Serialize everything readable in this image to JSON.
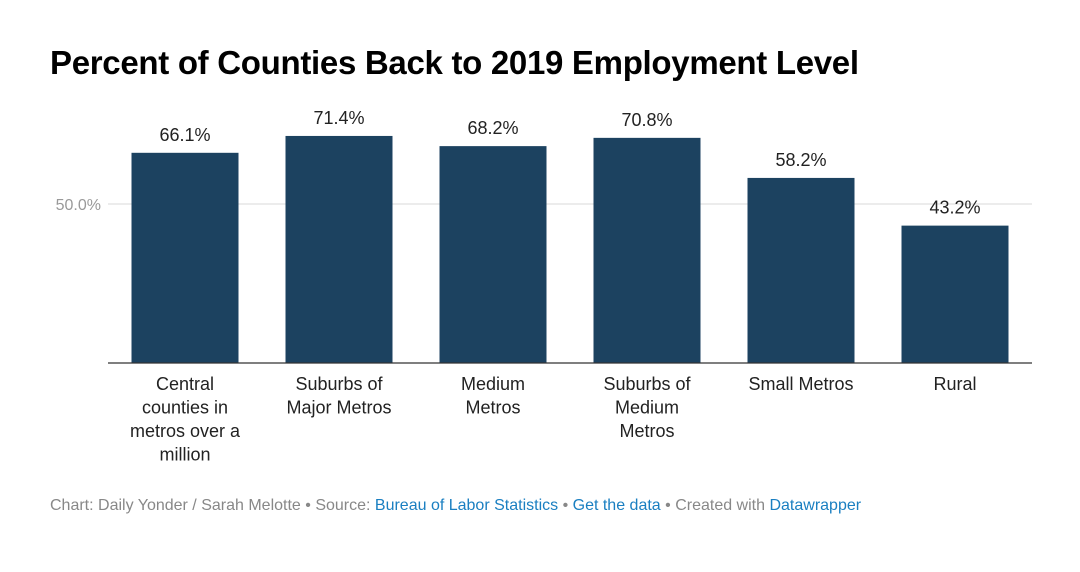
{
  "chart_data": {
    "type": "bar",
    "title": "Percent of Counties Back to 2019 Employment Level",
    "categories": [
      "Central counties in metros over a million",
      "Suburbs of Major Metros",
      "Medium Metros",
      "Suburbs of Medium Metros",
      "Small Metros",
      "Rural"
    ],
    "category_lines": [
      [
        "Central",
        "counties in",
        "metros over a",
        "million"
      ],
      [
        "Suburbs of",
        "Major Metros"
      ],
      [
        "Medium",
        "Metros"
      ],
      [
        "Suburbs of",
        "Medium",
        "Metros"
      ],
      [
        "Small Metros"
      ],
      [
        "Rural"
      ]
    ],
    "values": [
      66.1,
      71.4,
      68.2,
      70.8,
      58.2,
      43.2
    ],
    "value_labels": [
      "66.1%",
      "71.4%",
      "68.2%",
      "70.8%",
      "58.2%",
      "43.2%"
    ],
    "ylim": [
      0,
      80
    ],
    "yticks": [
      50
    ],
    "ytick_labels": [
      "50.0%"
    ],
    "xlabel": "",
    "ylabel": "",
    "bar_color": "#1c4260",
    "grid": true
  },
  "footer": {
    "prefix": "Chart: Daily Yonder / Sarah Melotte",
    "source_label": "Source:",
    "source_link": "Bureau of Labor Statistics",
    "get_data": "Get the data",
    "created_with": "Created with",
    "tool": "Datawrapper"
  },
  "colors": {
    "bar": "#1c4260",
    "link": "#1a7fc1",
    "muted": "#888888"
  }
}
